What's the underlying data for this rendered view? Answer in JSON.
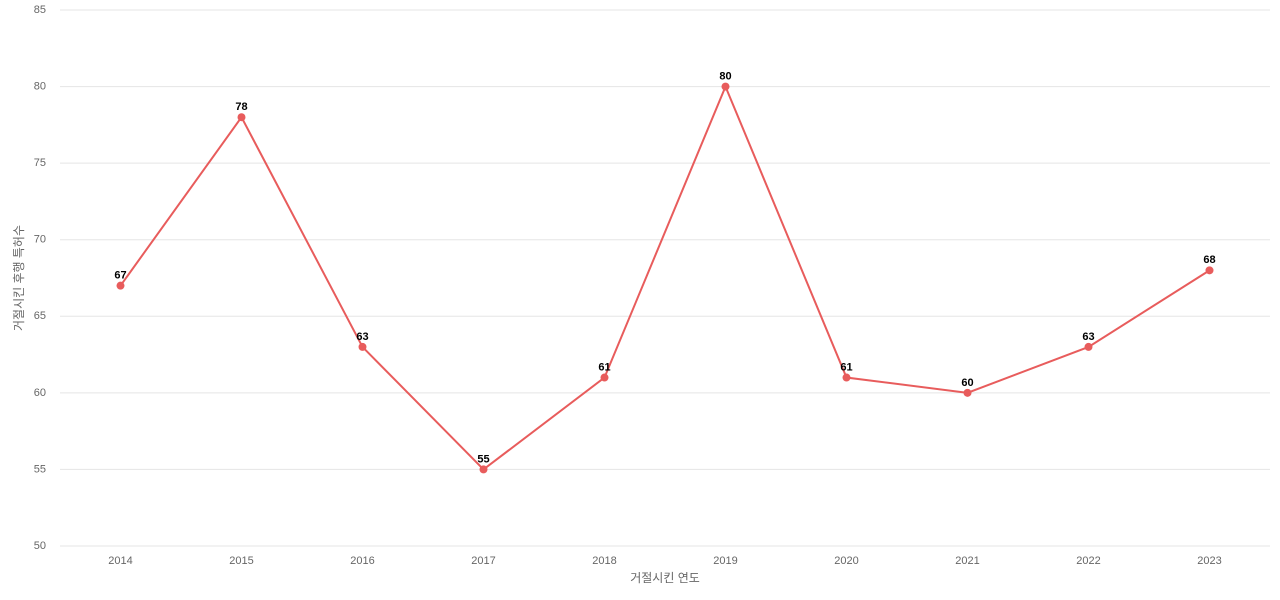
{
  "chart_data": {
    "type": "line",
    "x_label": "거절시킨 연도",
    "y_label": "거절시킨 후행 특허수",
    "categories": [
      "2014",
      "2015",
      "2016",
      "2017",
      "2018",
      "2019",
      "2020",
      "2021",
      "2022",
      "2023"
    ],
    "series": [
      {
        "color": "#e85c5c",
        "values": [
          67,
          78,
          63,
          55,
          61,
          80,
          61,
          60,
          63,
          68
        ]
      }
    ],
    "ylim": [
      50,
      85
    ],
    "yticks": [
      50,
      55,
      60,
      65,
      70,
      75,
      80,
      85
    ],
    "grid": true
  }
}
